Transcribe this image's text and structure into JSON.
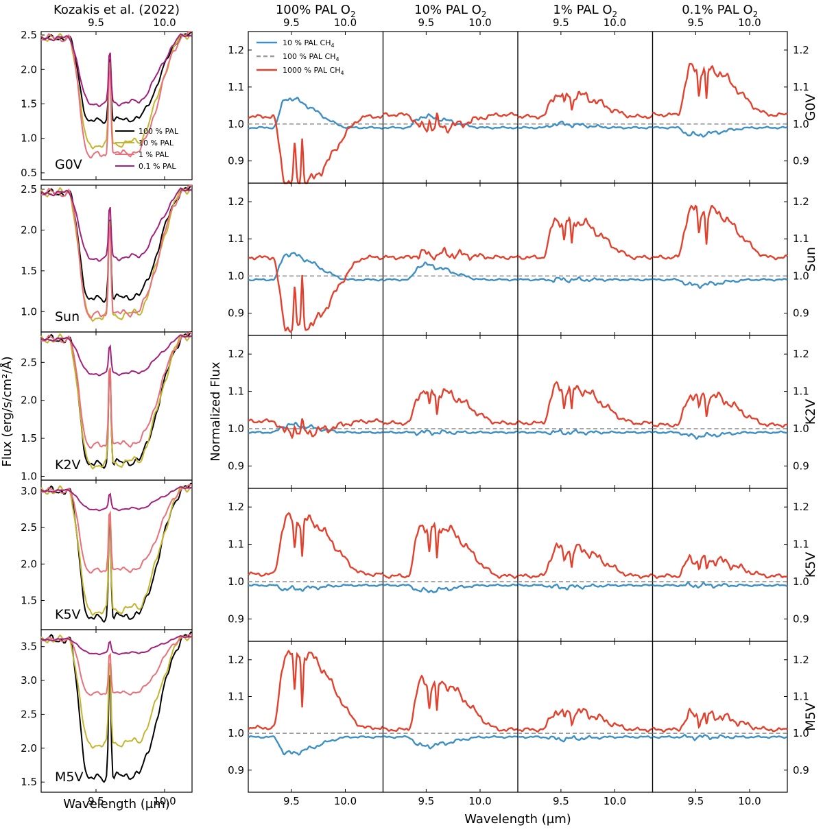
{
  "chart_data": {
    "type": "line",
    "figure": {
      "left_title": "Kozakis et al. (2022)",
      "left_ylabel": "Flux (erg/s/cm²/Å)",
      "left_xlabel": "Wavelength (µm)",
      "right_ylabel": "Normalized Flux",
      "right_xlabel": "Wavelength (µm)",
      "column_titles": [
        {
          "main": "100% PAL O",
          "sub": "2"
        },
        {
          "main": "10% PAL O",
          "sub": "2"
        },
        {
          "main": "1% PAL O",
          "sub": "2"
        },
        {
          "main": "0.1% PAL O",
          "sub": "2"
        }
      ],
      "stars": [
        "G0V",
        "Sun",
        "K2V",
        "K5V",
        "M5V"
      ]
    },
    "left_panels": {
      "xlim": [
        9.1,
        10.2
      ],
      "xticks": [
        9.5,
        10.0
      ],
      "xtick_labels": [
        "9.5",
        "10.0"
      ],
      "legend": {
        "placement": "lower-right",
        "entries": [
          "100 % PAL",
          "10 % PAL",
          "1 % PAL",
          "0.1 % PAL"
        ],
        "colors": [
          "#000000",
          "#c4b530",
          "#e8707a",
          "#a2217a"
        ]
      },
      "series_colors": {
        "100 % PAL": "#000000",
        "10 % PAL": "#c4b530",
        "1 % PAL": "#e8707a",
        "0.1 % PAL": "#a2217a"
      },
      "panels": [
        {
          "star": "G0V",
          "ylim": [
            0.4,
            2.55
          ],
          "yticks": [
            0.5,
            1.0,
            1.5,
            2.0,
            2.5
          ],
          "ytick_labels": [
            "0.5",
            "1.0",
            "1.5",
            "2.0",
            "2.5"
          ],
          "cont": [
            2.45,
            2.45,
            2.45,
            2.45,
            2.5
          ],
          "min": [
            1.25,
            0.9,
            0.75,
            1.5
          ]
        },
        {
          "star": "Sun",
          "ylim": [
            0.75,
            2.55
          ],
          "yticks": [
            1.0,
            1.5,
            2.0,
            2.5
          ],
          "ytick_labels": [
            "1.0",
            "1.5",
            "2.0",
            "2.5"
          ],
          "cont": [
            2.45,
            2.45,
            2.45,
            2.45,
            2.5
          ],
          "min": [
            1.15,
            0.93,
            0.95,
            1.65
          ]
        },
        {
          "star": "K2V",
          "ylim": [
            0.95,
            2.9
          ],
          "yticks": [
            1.0,
            1.5,
            2.0,
            2.5
          ],
          "ytick_labels": [
            "1.0",
            "1.5",
            "2.0",
            "2.5"
          ],
          "cont": [
            2.8,
            2.8,
            2.8,
            2.8,
            2.85
          ],
          "min": [
            1.15,
            1.15,
            1.4,
            2.35
          ]
        },
        {
          "star": "K5V",
          "ylim": [
            1.1,
            3.15
          ],
          "yticks": [
            1.5,
            2.0,
            2.5,
            3.0
          ],
          "ytick_labels": [
            "1.5",
            "2.0",
            "2.5",
            "3.0"
          ],
          "cont": [
            3.0,
            3.0,
            3.0,
            3.0,
            3.05
          ],
          "min": [
            1.25,
            1.35,
            1.9,
            2.75
          ]
        },
        {
          "star": "M5V",
          "ylim": [
            1.35,
            3.75
          ],
          "yticks": [
            1.5,
            2.0,
            2.5,
            3.0,
            3.5
          ],
          "ytick_labels": [
            "1.5",
            "2.0",
            "2.5",
            "3.0",
            "3.5"
          ],
          "cont": [
            3.6,
            3.6,
            3.6,
            3.6,
            3.65
          ],
          "min": [
            1.55,
            2.05,
            2.8,
            3.4
          ]
        }
      ]
    },
    "right_panels": {
      "xlim": [
        9.1,
        10.35
      ],
      "xticks": [
        9.5,
        10.0
      ],
      "xtick_labels": [
        "9.5",
        "10.0"
      ],
      "ylim": [
        0.84,
        1.25
      ],
      "yticks": [
        0.9,
        1.0,
        1.1,
        1.2
      ],
      "ytick_labels": [
        "0.9",
        "1.0",
        "1.1",
        "1.2"
      ],
      "legend": {
        "placement": "top-left",
        "entries": [
          {
            "label": "10 % PAL CH",
            "sub": "4",
            "color": "#3e8fc4",
            "dash": false
          },
          {
            "label": "100 % PAL CH",
            "sub": "4",
            "color": "#999999",
            "dash": true
          },
          {
            "label": "1000 % PAL CH",
            "sub": "4",
            "color": "#e2412e",
            "dash": false
          }
        ]
      },
      "series": [
        "10 % PAL CH4",
        "100 % PAL CH4",
        "1000 % PAL CH4"
      ],
      "peak_values_1000pct_CH4": [
        [
          0.84,
          0.99,
          1.08,
          1.15
        ],
        [
          0.86,
          1.06,
          1.15,
          1.18
        ],
        [
          0.99,
          1.1,
          1.11,
          1.09
        ],
        [
          1.17,
          1.15,
          1.09,
          1.06
        ],
        [
          1.22,
          1.14,
          1.06,
          1.05
        ]
      ],
      "baseline_1000pct_CH4": [
        [
          1.02,
          1.025,
          1.02,
          1.025
        ],
        [
          1.05,
          1.05,
          1.05,
          1.05
        ],
        [
          1.02,
          1.015,
          1.015,
          1.01
        ],
        [
          1.02,
          1.015,
          1.015,
          1.015
        ],
        [
          1.015,
          1.01,
          1.01,
          1.01
        ]
      ],
      "peak_values_10pct_CH4": [
        [
          1.07,
          1.02,
          1.0,
          0.97
        ],
        [
          1.06,
          1.03,
          0.99,
          0.975
        ],
        [
          1.01,
          0.99,
          0.99,
          0.98
        ],
        [
          0.98,
          0.975,
          0.985,
          0.99
        ],
        [
          0.945,
          0.965,
          0.985,
          0.99
        ]
      ]
    }
  }
}
